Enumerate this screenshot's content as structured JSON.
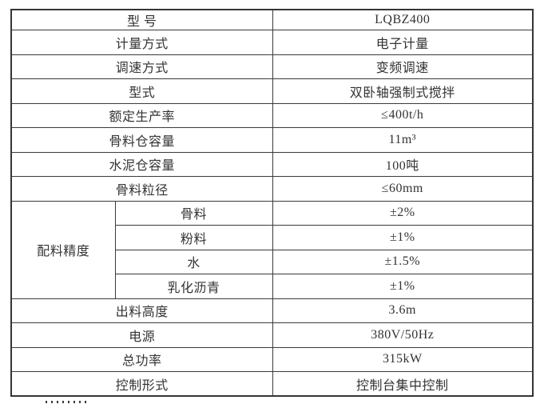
{
  "table": {
    "rows": [
      {
        "label": "型  号",
        "value": "LQBZ400"
      },
      {
        "label": "计量方式",
        "value": "电子计量"
      },
      {
        "label": "调速方式",
        "value": "变频调速"
      },
      {
        "label": "型式",
        "value": "双卧轴强制式搅拌"
      },
      {
        "label": "额定生产率",
        "value": "≤400t/h"
      },
      {
        "label": "骨料仓容量",
        "value": "11m³"
      },
      {
        "label": "水泥仓容量",
        "value": "100吨"
      },
      {
        "label": "骨料粒径",
        "value": "≤60mm"
      },
      {
        "group": "配料精度",
        "label": "骨料",
        "value": "±2%"
      },
      {
        "label": "粉料",
        "value": "±1%"
      },
      {
        "label": "水",
        "value": "±1.5%"
      },
      {
        "label": "乳化沥青",
        "value": "±1%"
      },
      {
        "label": "出料高度",
        "value": "3.6m"
      },
      {
        "label": "电源",
        "value": "380V/50Hz"
      },
      {
        "label": "总功率",
        "value": "315kW"
      },
      {
        "label": "控制形式",
        "value": "控制台集中控制"
      }
    ]
  }
}
